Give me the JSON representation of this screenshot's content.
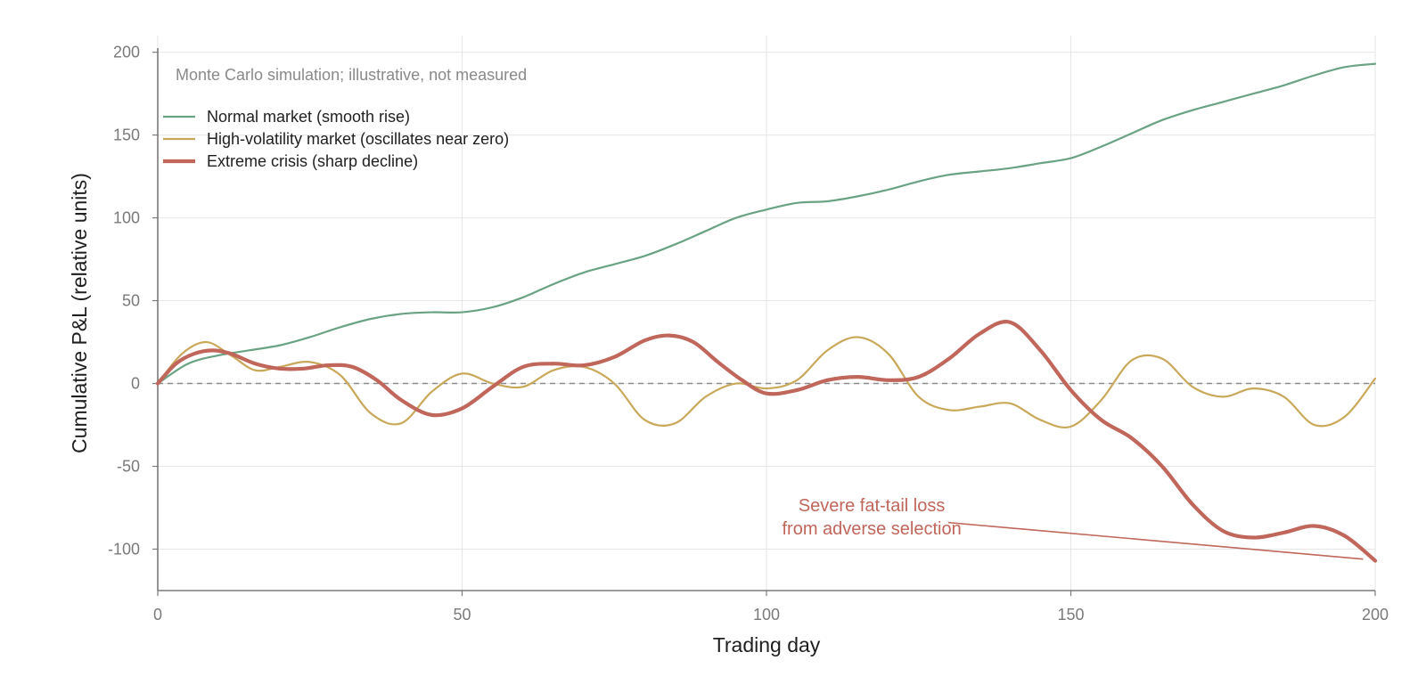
{
  "chart_data": {
    "type": "line",
    "title": "",
    "xlabel": "Trading day",
    "ylabel": "Cumulative P&L (relative units)",
    "xlim": [
      0,
      200
    ],
    "ylim": [
      -125,
      210
    ],
    "xticks": [
      0,
      50,
      100,
      150,
      200
    ],
    "yticks": [
      -100,
      -50,
      0,
      50,
      100,
      150,
      200
    ],
    "grid": true,
    "reference_line": {
      "y": 0,
      "style": "dashed"
    },
    "note": "Monte Carlo simulation; illustrative, not measured",
    "legend_position": "top-left",
    "colors": {
      "normal": "#6aa384",
      "volatile": "#c9a85a",
      "crisis": "#c0665a",
      "annotation": "#c0665a",
      "grid": "#e6e6e6",
      "axis": "#7a7a7a",
      "zero_line": "#8c8c8c"
    },
    "series": [
      {
        "name": "Normal market (smooth rise)",
        "key": "normal",
        "x": [
          0,
          5,
          10,
          15,
          20,
          25,
          30,
          35,
          40,
          45,
          50,
          55,
          60,
          65,
          70,
          75,
          80,
          85,
          90,
          95,
          100,
          105,
          110,
          115,
          120,
          125,
          130,
          135,
          140,
          145,
          150,
          155,
          160,
          165,
          170,
          175,
          180,
          185,
          190,
          195,
          200
        ],
        "y": [
          0,
          12,
          17,
          20,
          23,
          28,
          34,
          39,
          42,
          43,
          43,
          46,
          52,
          60,
          67,
          72,
          77,
          84,
          92,
          100,
          105,
          109,
          110,
          113,
          117,
          122,
          126,
          128,
          130,
          133,
          136,
          143,
          151,
          159,
          165,
          170,
          175,
          180,
          186,
          191,
          193
        ]
      },
      {
        "name": "High-volatility market (oscillates near zero)",
        "key": "volatile",
        "x": [
          0,
          4,
          8,
          12,
          16,
          20,
          25,
          30,
          35,
          40,
          45,
          50,
          55,
          60,
          65,
          70,
          75,
          80,
          85,
          90,
          95,
          100,
          105,
          110,
          115,
          120,
          125,
          130,
          135,
          140,
          145,
          150,
          155,
          160,
          165,
          170,
          175,
          180,
          185,
          190,
          195,
          200
        ],
        "y": [
          0,
          18,
          25,
          17,
          8,
          10,
          13,
          5,
          -18,
          -24,
          -5,
          6,
          0,
          -2,
          8,
          10,
          0,
          -22,
          -24,
          -8,
          0,
          -3,
          2,
          20,
          28,
          18,
          -8,
          -16,
          -14,
          -12,
          -22,
          -26,
          -10,
          14,
          15,
          -2,
          -8,
          -3,
          -8,
          -25,
          -20,
          3
        ]
      },
      {
        "name": "Extreme crisis (sharp decline)",
        "key": "crisis",
        "x": [
          0,
          3,
          6,
          9,
          12,
          16,
          20,
          24,
          28,
          32,
          36,
          40,
          45,
          50,
          55,
          60,
          65,
          70,
          75,
          80,
          84,
          88,
          92,
          96,
          100,
          105,
          110,
          115,
          120,
          125,
          130,
          135,
          140,
          145,
          150,
          155,
          160,
          165,
          170,
          175,
          180,
          185,
          190,
          195,
          200
        ],
        "y": [
          0,
          12,
          18,
          20,
          18,
          12,
          9,
          9,
          11,
          10,
          2,
          -10,
          -19,
          -15,
          -2,
          10,
          12,
          11,
          16,
          26,
          29,
          25,
          13,
          2,
          -6,
          -4,
          2,
          4,
          2,
          4,
          15,
          30,
          37,
          20,
          -4,
          -22,
          -33,
          -50,
          -73,
          -89,
          -93,
          -90,
          -86,
          -92,
          -107
        ]
      }
    ],
    "annotation": {
      "text_lines": [
        "Severe fat-tail loss",
        "from adverse selection"
      ],
      "label_x": 117,
      "label_y": -78,
      "arrow_from": [
        135,
        -85
      ],
      "arrow_to": [
        198,
        -106
      ]
    }
  }
}
